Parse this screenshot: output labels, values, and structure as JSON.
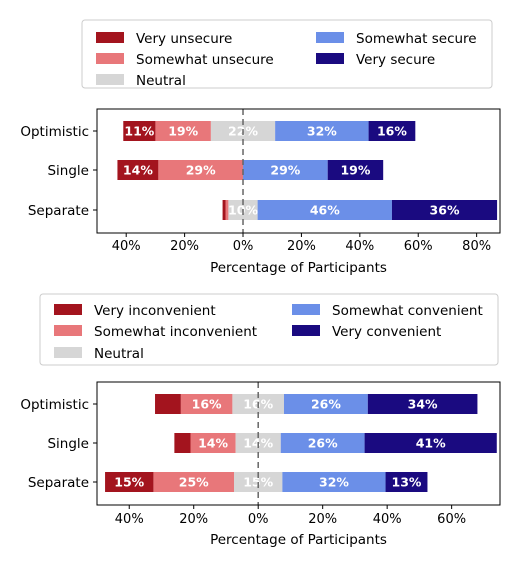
{
  "chart_data": [
    {
      "type": "bar",
      "orientation": "horizontal-diverging",
      "categories": [
        "Optimistic",
        "Single",
        "Separate"
      ],
      "xlabel": "Percentage of Participants",
      "xticks": [
        "40%",
        "20%",
        "0%",
        "20%",
        "40%",
        "60%",
        "80%"
      ],
      "xlim": [
        -50,
        88
      ],
      "legend_placement": "top",
      "series": [
        {
          "name": "Very unsecure",
          "color": "#a3141e",
          "side": "negative",
          "values": [
            11,
            14,
            1
          ]
        },
        {
          "name": "Somewhat unsecure",
          "color": "#e8777a",
          "side": "negative",
          "values": [
            19,
            29,
            1
          ]
        },
        {
          "name": "Neutral",
          "color": "#d6d6d6",
          "side": "center",
          "values": [
            22,
            0,
            10
          ]
        },
        {
          "name": "Somewhat secure",
          "color": "#6b8fe8",
          "side": "positive",
          "values": [
            32,
            29,
            46
          ]
        },
        {
          "name": "Very secure",
          "color": "#1a0a80",
          "side": "positive",
          "values": [
            16,
            19,
            36
          ]
        }
      ],
      "data_labels": [
        [
          "11%",
          "19%",
          "22%",
          "32%",
          "16%"
        ],
        [
          "14%",
          "29%",
          "",
          "29%",
          "19%"
        ],
        [
          "",
          "",
          "10%",
          "46%",
          "36%"
        ]
      ]
    },
    {
      "type": "bar",
      "orientation": "horizontal-diverging",
      "categories": [
        "Optimistic",
        "Single",
        "Separate"
      ],
      "xlabel": "Percentage of Participants",
      "xticks": [
        "40%",
        "20%",
        "0%",
        "20%",
        "40%",
        "60%"
      ],
      "xlim": [
        -50,
        75
      ],
      "legend_placement": "top",
      "series": [
        {
          "name": "Very inconvenient",
          "color": "#a3141e",
          "side": "negative",
          "values": [
            8,
            5,
            15
          ]
        },
        {
          "name": "Somewhat inconvenient",
          "color": "#e8777a",
          "side": "negative",
          "values": [
            16,
            14,
            25
          ]
        },
        {
          "name": "Neutral",
          "color": "#d6d6d6",
          "side": "center",
          "values": [
            16,
            14,
            15
          ]
        },
        {
          "name": "Somewhat convenient",
          "color": "#6b8fe8",
          "side": "positive",
          "values": [
            26,
            26,
            32
          ]
        },
        {
          "name": "Very convenient",
          "color": "#1a0a80",
          "side": "positive",
          "values": [
            34,
            41,
            13
          ]
        }
      ],
      "data_labels": [
        [
          "",
          "16%",
          "16%",
          "26%",
          "34%"
        ],
        [
          "",
          "14%",
          "14%",
          "26%",
          "41%"
        ],
        [
          "15%",
          "25%",
          "15%",
          "32%",
          "13%"
        ]
      ]
    }
  ]
}
